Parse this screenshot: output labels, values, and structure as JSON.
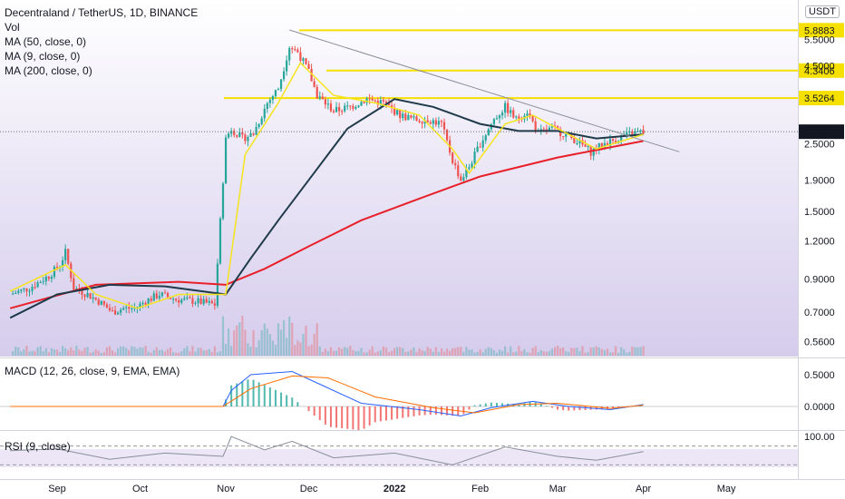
{
  "legend": {
    "title": "Decentraland / TetherUS, 1D, BINANCE",
    "vol": "Vol",
    "ma50": "MA (50, close, 0)",
    "ma9": "MA (9, close, 0)",
    "ma200": "MA (200, close, 0)",
    "macd": "MACD (12, 26, close, 9, EMA, EMA)",
    "rsi": "RSI (9, close)"
  },
  "currency_badge": "USDT",
  "colors": {
    "up": "#26a69a",
    "down": "#ef5350",
    "ma50": "#1f3a4a",
    "ma9": "#f5e41d",
    "ma200": "#e8202a",
    "level": "#f5e000",
    "trend": "#8a8f9a",
    "macd": "#2962ff",
    "signal": "#ff6d00",
    "rsi": "#7e57c2"
  },
  "chart_data": [
    {
      "type": "candlestick",
      "title": "Decentraland / TetherUS, 1D, BINANCE",
      "scale": "log",
      "ylim": [
        0.5,
        7.4
      ],
      "y_ticks": [
        "5.5000",
        "4.5000",
        "2.5000",
        "1.9000",
        "1.5000",
        "1.2000",
        "0.9000",
        "0.7000",
        "0.5600"
      ],
      "x_ticks": [
        "Sep",
        "Oct",
        "Nov",
        "Dec",
        "2022",
        "Feb",
        "Mar",
        "Apr",
        "May"
      ],
      "last_price": "2.7352",
      "horizontal_levels": [
        "5.8883",
        "4.3406",
        "3.5264"
      ],
      "trend_line": {
        "from": [
          "Nov 24",
          5.9
        ],
        "to": [
          "Apr 14",
          2.35
        ]
      },
      "price_path": [
        [
          "Aug 15",
          0.8
        ],
        [
          "Aug 22",
          0.84
        ],
        [
          "Aug 29",
          0.92
        ],
        [
          "Sep 2",
          1.0
        ],
        [
          "Sep 4",
          1.1
        ],
        [
          "Sep 7",
          0.84
        ],
        [
          "Sep 12",
          0.8
        ],
        [
          "Sep 16",
          0.76
        ],
        [
          "Sep 21",
          0.7
        ],
        [
          "Sep 25",
          0.72
        ],
        [
          "Sep 29",
          0.72
        ],
        [
          "Oct 3",
          0.76
        ],
        [
          "Oct 8",
          0.8
        ],
        [
          "Oct 14",
          0.77
        ],
        [
          "Oct 21",
          0.76
        ],
        [
          "Oct 28",
          0.74
        ],
        [
          "Nov 1",
          2.6
        ],
        [
          "Nov 3",
          2.8
        ],
        [
          "Nov 7",
          2.6
        ],
        [
          "Nov 11",
          2.7
        ],
        [
          "Nov 16",
          3.4
        ],
        [
          "Nov 20",
          3.8
        ],
        [
          "Nov 24",
          5.2
        ],
        [
          "Nov 27",
          5.0
        ],
        [
          "Dec 1",
          4.3
        ],
        [
          "Dec 4",
          3.6
        ],
        [
          "Dec 10",
          3.2
        ],
        [
          "Dec 16",
          3.3
        ],
        [
          "Dec 22",
          3.5
        ],
        [
          "Dec 28",
          3.4
        ],
        [
          "Jan 3",
          3.1
        ],
        [
          "Jan 8",
          3.0
        ],
        [
          "Jan 13",
          3.0
        ],
        [
          "Jan 18",
          2.9
        ],
        [
          "Jan 22",
          2.2
        ],
        [
          "Jan 25",
          1.9
        ],
        [
          "Jan 28",
          2.1
        ],
        [
          "Feb 1",
          2.5
        ],
        [
          "Feb 6",
          3.0
        ],
        [
          "Feb 10",
          3.3
        ],
        [
          "Feb 14",
          3.0
        ],
        [
          "Feb 18",
          3.2
        ],
        [
          "Feb 22",
          2.7
        ],
        [
          "Feb 27",
          2.8
        ],
        [
          "Mar 3",
          2.7
        ],
        [
          "Mar 8",
          2.55
        ],
        [
          "Mar 13",
          2.35
        ],
        [
          "Mar 18",
          2.5
        ],
        [
          "Mar 23",
          2.6
        ],
        [
          "Mar 28",
          2.7
        ],
        [
          "Apr 1",
          2.7352
        ]
      ],
      "ma50_path": [
        [
          "Aug 15",
          0.67
        ],
        [
          "Sep 1",
          0.8
        ],
        [
          "Sep 20",
          0.86
        ],
        [
          "Oct 10",
          0.85
        ],
        [
          "Nov 1",
          0.8
        ],
        [
          "Nov 10",
          1.05
        ],
        [
          "Nov 20",
          1.4
        ],
        [
          "Dec 1",
          1.9
        ],
        [
          "Dec 15",
          2.8
        ],
        [
          "Jan 1",
          3.5
        ],
        [
          "Jan 15",
          3.3
        ],
        [
          "Feb 1",
          2.9
        ],
        [
          "Feb 15",
          2.75
        ],
        [
          "Mar 1",
          2.75
        ],
        [
          "Mar 15",
          2.6
        ],
        [
          "Apr 1",
          2.68
        ]
      ],
      "ma9_path": [
        [
          "Aug 15",
          0.82
        ],
        [
          "Sep 4",
          1.0
        ],
        [
          "Sep 15",
          0.8
        ],
        [
          "Sep 30",
          0.72
        ],
        [
          "Oct 15",
          0.8
        ],
        [
          "Nov 1",
          0.8
        ],
        [
          "Nov 8",
          2.3
        ],
        [
          "Nov 20",
          3.4
        ],
        [
          "Nov 28",
          4.6
        ],
        [
          "Dec 10",
          3.6
        ],
        [
          "Dec 25",
          3.4
        ],
        [
          "Jan 10",
          3.1
        ],
        [
          "Jan 22",
          2.4
        ],
        [
          "Jan 28",
          2.0
        ],
        [
          "Feb 10",
          2.9
        ],
        [
          "Feb 20",
          3.1
        ],
        [
          "Mar 1",
          2.8
        ],
        [
          "Mar 15",
          2.4
        ],
        [
          "Apr 1",
          2.68
        ]
      ],
      "ma200_path": [
        [
          "Aug 15",
          0.72
        ],
        [
          "Sep 15",
          0.86
        ],
        [
          "Oct 15",
          0.88
        ],
        [
          "Nov 1",
          0.86
        ],
        [
          "Nov 15",
          0.97
        ],
        [
          "Dec 1",
          1.15
        ],
        [
          "Dec 20",
          1.4
        ],
        [
          "Jan 10",
          1.65
        ],
        [
          "Feb 1",
          1.95
        ],
        [
          "Mar 1",
          2.25
        ],
        [
          "Apr 1",
          2.55
        ]
      ]
    },
    {
      "type": "line",
      "title": "MACD (12, 26, close, 9, EMA, EMA)",
      "y_ticks": [
        "0.5000",
        "0.0000"
      ],
      "macd_path": [
        [
          "Aug 15",
          0.0
        ],
        [
          "Oct 31",
          0.0
        ],
        [
          "Nov 3",
          0.25
        ],
        [
          "Nov 10",
          0.5
        ],
        [
          "Nov 25",
          0.55
        ],
        [
          "Dec 5",
          0.35
        ],
        [
          "Dec 20",
          0.05
        ],
        [
          "Jan 10",
          -0.05
        ],
        [
          "Jan 25",
          -0.15
        ],
        [
          "Feb 5",
          -0.02
        ],
        [
          "Feb 20",
          0.08
        ],
        [
          "Mar 5",
          0.0
        ],
        [
          "Mar 20",
          -0.05
        ],
        [
          "Apr 1",
          0.03
        ]
      ],
      "signal_path": [
        [
          "Aug 15",
          0.0
        ],
        [
          "Oct 31",
          0.0
        ],
        [
          "Nov 10",
          0.28
        ],
        [
          "Nov 25",
          0.48
        ],
        [
          "Dec 8",
          0.45
        ],
        [
          "Dec 25",
          0.15
        ],
        [
          "Jan 15",
          -0.02
        ],
        [
          "Jan 30",
          -0.1
        ],
        [
          "Feb 15",
          0.03
        ],
        [
          "Mar 1",
          0.05
        ],
        [
          "Mar 20",
          -0.03
        ],
        [
          "Apr 1",
          0.02
        ]
      ]
    },
    {
      "type": "line",
      "title": "RSI (9, close)",
      "y_ticks": [
        "100.00"
      ],
      "rsi_path": [
        [
          "Aug 15",
          60
        ],
        [
          "Sep 1",
          64
        ],
        [
          "Sep 20",
          42
        ],
        [
          "Oct 10",
          55
        ],
        [
          "Oct 31",
          48
        ],
        [
          "Nov 3",
          90
        ],
        [
          "Nov 15",
          62
        ],
        [
          "Nov 25",
          80
        ],
        [
          "Dec 10",
          45
        ],
        [
          "Jan 1",
          55
        ],
        [
          "Jan 22",
          30
        ],
        [
          "Feb 10",
          68
        ],
        [
          "Mar 1",
          48
        ],
        [
          "Mar 15",
          40
        ],
        [
          "Apr 1",
          58
        ]
      ]
    }
  ]
}
